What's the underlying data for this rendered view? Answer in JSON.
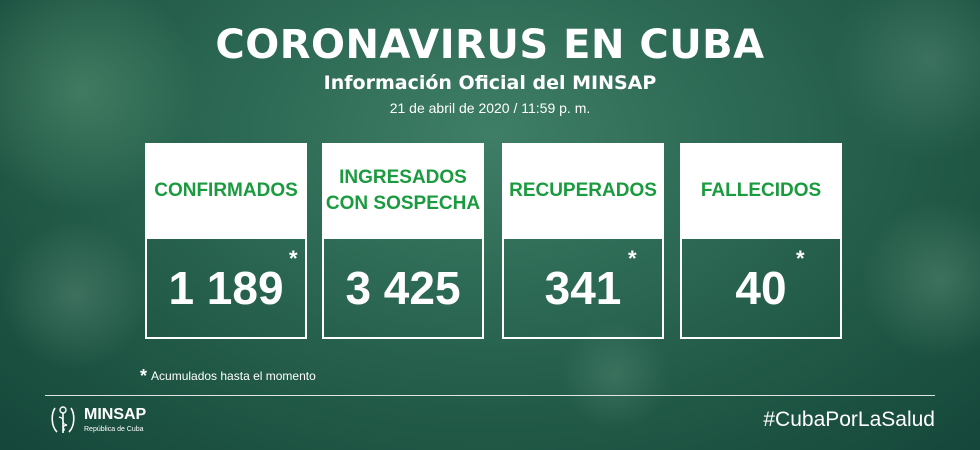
{
  "header": {
    "title": "CORONAVIRUS EN CUBA",
    "subtitle": "Información Oficial del MINSAP",
    "date": "21 de abril de 2020 / 11:59 p. m."
  },
  "cards": [
    {
      "label": "CONFIRMADOS",
      "value": "1 189",
      "asterisk": "*"
    },
    {
      "label": "INGRESADOS\nCON SOSPECHA",
      "value": "3 425",
      "asterisk": ""
    },
    {
      "label": "RECUPERADOS",
      "value": "341",
      "asterisk": "*"
    },
    {
      "label": "FALLECIDOS",
      "value": "40",
      "asterisk": "*"
    }
  ],
  "footnote": {
    "star": "*",
    "text": "Acumulados hasta el momento"
  },
  "footer": {
    "logo_name": "MINSAP",
    "logo_sub": "República de Cuba",
    "hashtag": "#CubaPorLaSalud"
  },
  "colors": {
    "label_green": "#1b9b3f",
    "background": "#2d6a55"
  },
  "icons": {
    "logo": "minsap-emblem-icon",
    "background": "virus-icon"
  }
}
